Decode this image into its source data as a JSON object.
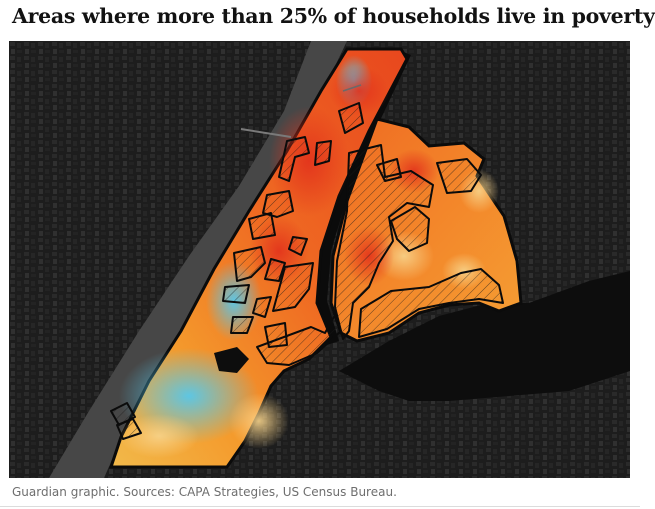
{
  "header": {
    "title": "Areas where more than 25% of households live in poverty"
  },
  "footer": {
    "source": "Guardian graphic. Sources: CAPA Strategies, US Census Bureau."
  },
  "map": {
    "basemap": "dark satellite imagery",
    "heat_scale_colors": [
      "#55c8ec",
      "#a9dde9",
      "#f3c560",
      "#f49a2c",
      "#ef5a1e",
      "#e2321c"
    ],
    "highlight_style": "black outline with diagonal hatching",
    "water_color": "#4a4a4a",
    "land_color": "#1c1c1c"
  }
}
